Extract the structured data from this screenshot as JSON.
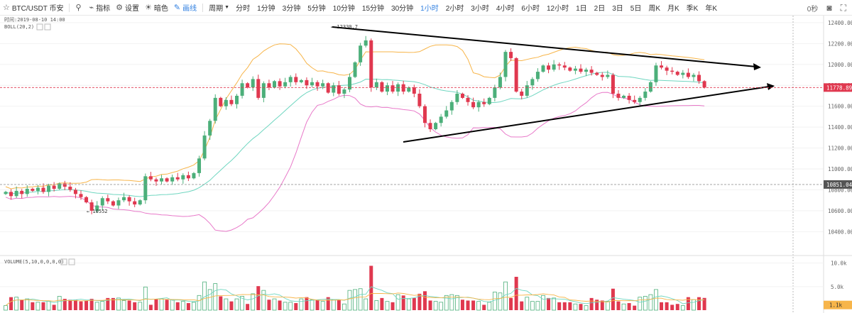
{
  "toolbar": {
    "symbol": "BTC/USDT 币安",
    "indicators": "指标",
    "settings": "设置",
    "theme": "暗色",
    "draw": "画线",
    "period": "周期",
    "timeframes": [
      "分时",
      "1分钟",
      "3分钟",
      "5分钟",
      "10分钟",
      "15分钟",
      "30分钟",
      "1小时",
      "2小时",
      "3小时",
      "4小时",
      "6小时",
      "12小时",
      "1日",
      "2日",
      "3日",
      "5日",
      "周K",
      "月K",
      "季K",
      "年K"
    ],
    "active_timeframe": "1小时",
    "countdown": "0秒"
  },
  "info": {
    "time_label": "时间:2019-08-10 14:00",
    "boll_label": "BOLL(20,2)",
    "volume_label": "VOLUME(5,10,0,0,0,0)"
  },
  "colors": {
    "up": "#4caf7a",
    "down": "#e0384f",
    "boll_mid": "#6fd6c0",
    "boll_upper": "#f7b54a",
    "boll_lower": "#e879c9",
    "trendline": "#000000",
    "price_tag": "#e0384f",
    "ref_tag": "#555555",
    "vol_tag": "#f7b54a"
  },
  "chart_data": {
    "type": "candlestick",
    "y_ticks": [
      "12400.00",
      "12200.00",
      "12000.00",
      "11800.00",
      "11600.00",
      "11400.00",
      "11200.00",
      "11000.00",
      "10800.00",
      "10600.00",
      "10400.00"
    ],
    "ylim": [
      10280,
      12440
    ],
    "current_price": "11778.89",
    "reference_price": "10851.04",
    "annotations": {
      "high": "12330.7",
      "low": "10552"
    },
    "volume": {
      "y_ticks": [
        "10.0k",
        "5.0k"
      ],
      "ylim": [
        0,
        11000
      ],
      "current": "1.1k"
    },
    "candles": [
      [
        10760,
        10780
      ],
      [
        10780,
        10740
      ],
      [
        10740,
        10790
      ],
      [
        10790,
        10760
      ],
      [
        10760,
        10810
      ],
      [
        10810,
        10790
      ],
      [
        10790,
        10820
      ],
      [
        10820,
        10780
      ],
      [
        10780,
        10840
      ],
      [
        10840,
        10810
      ],
      [
        10810,
        10860
      ],
      [
        10860,
        10830
      ],
      [
        10830,
        10800
      ],
      [
        10800,
        10760
      ],
      [
        10760,
        10730
      ],
      [
        10730,
        10680
      ],
      [
        10680,
        10600
      ],
      [
        10600,
        10650
      ],
      [
        10650,
        10720
      ],
      [
        10720,
        10690
      ],
      [
        10690,
        10650
      ],
      [
        10650,
        10700
      ],
      [
        10700,
        10730
      ],
      [
        10730,
        10690
      ],
      [
        10690,
        10660
      ],
      [
        10660,
        10700
      ],
      [
        10700,
        10930
      ],
      [
        10930,
        10900
      ],
      [
        10900,
        10880
      ],
      [
        10880,
        10910
      ],
      [
        10910,
        10880
      ],
      [
        10880,
        10920
      ],
      [
        10920,
        10900
      ],
      [
        10900,
        10940
      ],
      [
        10940,
        10910
      ],
      [
        10910,
        10960
      ],
      [
        10960,
        11100
      ],
      [
        11100,
        11320
      ],
      [
        11320,
        11460
      ],
      [
        11460,
        11680
      ],
      [
        11680,
        11600
      ],
      [
        11600,
        11660
      ],
      [
        11660,
        11620
      ],
      [
        11620,
        11700
      ],
      [
        11700,
        11820
      ],
      [
        11820,
        11780
      ],
      [
        11780,
        11860
      ],
      [
        11860,
        11680
      ],
      [
        11680,
        11820
      ],
      [
        11820,
        11780
      ],
      [
        11780,
        11840
      ],
      [
        11840,
        11790
      ],
      [
        11790,
        11830
      ],
      [
        11830,
        11880
      ],
      [
        11880,
        11830
      ],
      [
        11830,
        11850
      ],
      [
        11850,
        11800
      ],
      [
        11800,
        11830
      ],
      [
        11830,
        11790
      ],
      [
        11790,
        11820
      ],
      [
        11820,
        11730
      ],
      [
        11730,
        11800
      ],
      [
        11800,
        11720
      ],
      [
        11720,
        11760
      ],
      [
        11760,
        11880
      ],
      [
        11880,
        12020
      ],
      [
        12020,
        12180
      ],
      [
        12180,
        12230
      ],
      [
        12230,
        11780
      ],
      [
        11780,
        11830
      ],
      [
        11830,
        11740
      ],
      [
        11740,
        11800
      ],
      [
        11800,
        11740
      ],
      [
        11740,
        11810
      ],
      [
        11810,
        11740
      ],
      [
        11740,
        11780
      ],
      [
        11780,
        11720
      ],
      [
        11720,
        11600
      ],
      [
        11600,
        11440
      ],
      [
        11440,
        11380
      ],
      [
        11380,
        11440
      ],
      [
        11440,
        11500
      ],
      [
        11500,
        11560
      ],
      [
        11560,
        11640
      ],
      [
        11640,
        11720
      ],
      [
        11720,
        11680
      ],
      [
        11680,
        11640
      ],
      [
        11640,
        11590
      ],
      [
        11590,
        11640
      ],
      [
        11640,
        11620
      ],
      [
        11620,
        11680
      ],
      [
        11680,
        11780
      ],
      [
        11780,
        11880
      ],
      [
        11880,
        12120
      ],
      [
        12120,
        12060
      ],
      [
        12060,
        11740
      ],
      [
        11740,
        11700
      ],
      [
        11700,
        11800
      ],
      [
        11800,
        11860
      ],
      [
        11860,
        11930
      ],
      [
        11930,
        11990
      ],
      [
        11990,
        11950
      ],
      [
        11950,
        12000
      ],
      [
        12000,
        11990
      ],
      [
        11990,
        11970
      ],
      [
        11970,
        11940
      ],
      [
        11940,
        11960
      ],
      [
        11960,
        11930
      ],
      [
        11930,
        11950
      ],
      [
        11950,
        11920
      ],
      [
        11920,
        11900
      ],
      [
        11900,
        11880
      ],
      [
        11880,
        11900
      ],
      [
        11900,
        11720
      ],
      [
        11720,
        11680
      ],
      [
        11680,
        11700
      ],
      [
        11700,
        11660
      ],
      [
        11660,
        11640
      ],
      [
        11640,
        11680
      ],
      [
        11680,
        11740
      ],
      [
        11740,
        11830
      ],
      [
        11830,
        11990
      ],
      [
        11990,
        11970
      ],
      [
        11970,
        11940
      ],
      [
        11940,
        11930
      ],
      [
        11930,
        11900
      ],
      [
        11900,
        11920
      ],
      [
        11920,
        11880
      ],
      [
        11880,
        11900
      ],
      [
        11900,
        11840
      ],
      [
        11840,
        11779
      ]
    ]
  }
}
